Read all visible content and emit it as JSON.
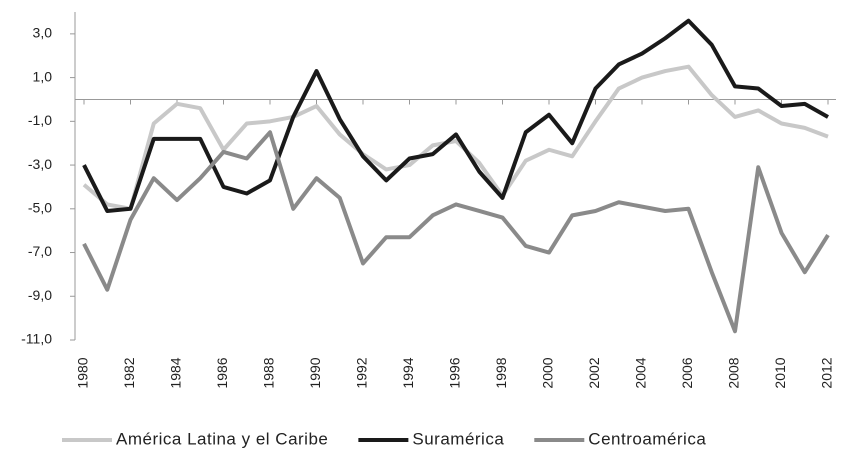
{
  "chart_data": {
    "type": "line",
    "x": [
      1980,
      1981,
      1982,
      1983,
      1984,
      1985,
      1986,
      1987,
      1988,
      1989,
      1990,
      1991,
      1992,
      1993,
      1994,
      1995,
      1996,
      1997,
      1998,
      1999,
      2000,
      2001,
      2002,
      2003,
      2004,
      2005,
      2006,
      2007,
      2008,
      2009,
      2010,
      2011,
      2012
    ],
    "series": [
      {
        "name": "América Latina y el Caribe",
        "color": "#c8c8c8",
        "values": [
          -3.9,
          -4.8,
          -5.0,
          -1.1,
          -0.2,
          -0.4,
          -2.3,
          -1.1,
          -1.0,
          -0.8,
          -0.3,
          -1.6,
          -2.5,
          -3.2,
          -3.0,
          -2.1,
          -1.9,
          -2.9,
          -4.4,
          -2.8,
          -2.3,
          -2.6,
          -1.0,
          0.5,
          1.0,
          1.3,
          1.5,
          0.2,
          -0.8,
          -0.5,
          -1.1,
          -1.3,
          -1.7
        ]
      },
      {
        "name": "Suramérica",
        "color": "#1a1a1a",
        "values": [
          -3.0,
          -5.1,
          -5.0,
          -1.8,
          -1.8,
          -1.8,
          -4.0,
          -4.3,
          -3.7,
          -0.8,
          1.3,
          -0.9,
          -2.6,
          -3.7,
          -2.7,
          -2.5,
          -1.6,
          -3.3,
          -4.5,
          -1.5,
          -0.7,
          -2.0,
          0.5,
          1.6,
          2.1,
          2.8,
          3.6,
          2.5,
          0.6,
          0.5,
          -0.3,
          -0.2,
          -0.8
        ]
      },
      {
        "name": "Centroamérica",
        "color": "#8a8a8a",
        "values": [
          -6.6,
          -8.7,
          -5.5,
          -3.6,
          -4.6,
          -3.6,
          -2.4,
          -2.7,
          -1.5,
          -5.0,
          -3.6,
          -4.5,
          -7.5,
          -6.3,
          -6.3,
          -5.3,
          -4.8,
          -5.1,
          -5.4,
          -6.7,
          -7.0,
          -5.3,
          -5.1,
          -4.7,
          -4.9,
          -5.1,
          -5.0,
          -7.9,
          -10.6,
          -3.1,
          -6.1,
          -7.9,
          -6.2
        ]
      }
    ],
    "xlim": [
      1980,
      2012
    ],
    "xticks": [
      1980,
      1982,
      1984,
      1986,
      1988,
      1990,
      1992,
      1994,
      1996,
      1998,
      2000,
      2002,
      2004,
      2006,
      2008,
      2010,
      2012
    ],
    "ylim": [
      -11,
      4
    ],
    "yticks": [
      {
        "value": 3,
        "label": "3,0"
      },
      {
        "value": 1,
        "label": "1,0"
      },
      {
        "value": -1,
        "label": "-1,0"
      },
      {
        "value": -3,
        "label": "-3,0"
      },
      {
        "value": -5,
        "label": "-5,0"
      },
      {
        "value": -7,
        "label": "-7,0"
      },
      {
        "value": -9,
        "label": "-9,0"
      },
      {
        "value": -11,
        "label": "-11,0"
      }
    ],
    "legend": "bottom"
  }
}
